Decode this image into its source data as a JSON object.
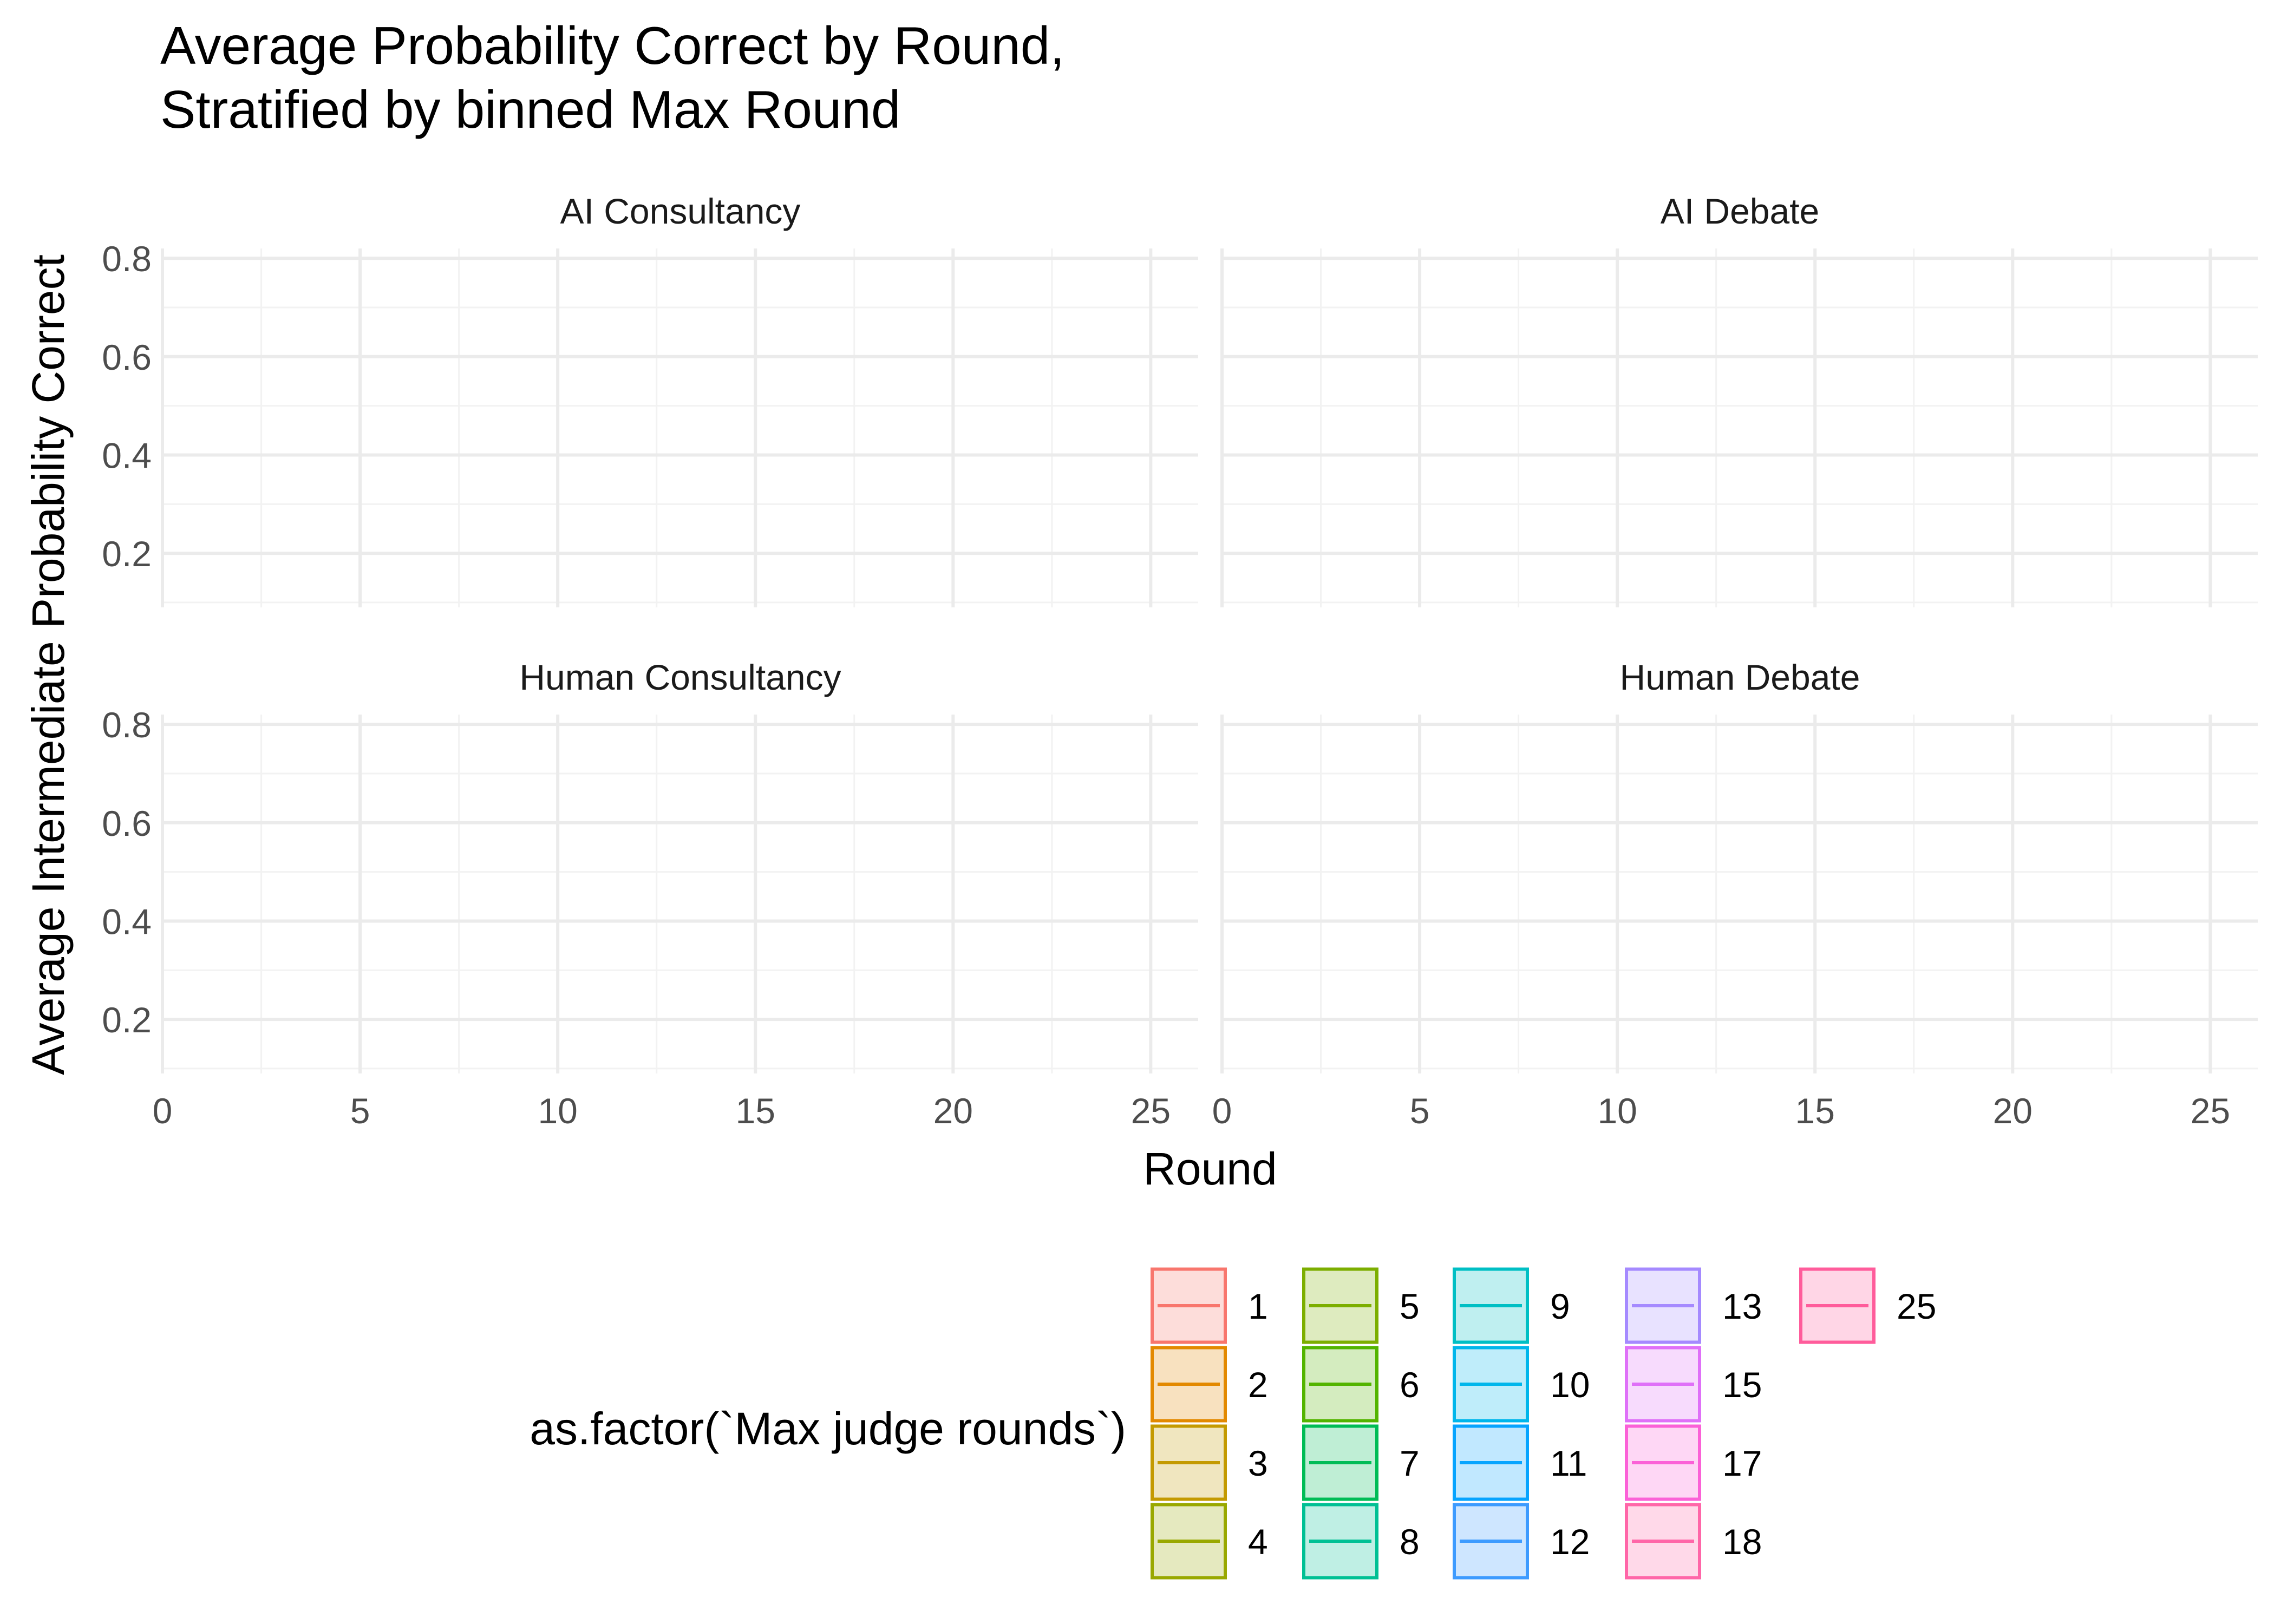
{
  "chart_data": {
    "type": "line",
    "title": "Average Probability Correct by Round,",
    "subtitle": "Stratified by binned Max Round",
    "xlabel": "Round",
    "ylabel": "Average Intermediate Probability Correct",
    "xlim": [
      0,
      26.2
    ],
    "ylim": [
      0.09,
      0.82
    ],
    "x_ticks": [
      0,
      5,
      10,
      15,
      20,
      25
    ],
    "x_tick_labels": [
      "0",
      "5",
      "10",
      "15",
      "20",
      "25"
    ],
    "y_ticks": [
      0.2,
      0.4,
      0.6,
      0.8
    ],
    "y_tick_labels": [
      "0.2",
      "0.4",
      "0.6",
      "0.8"
    ],
    "grid": true,
    "facets": [
      {
        "title": "AI Consultancy",
        "series": []
      },
      {
        "title": "AI Debate",
        "series": []
      },
      {
        "title": "Human Consultancy",
        "series": []
      },
      {
        "title": "Human Debate",
        "series": []
      }
    ],
    "legend": {
      "title": "as.factor(`Max judge rounds`)",
      "position": "bottom",
      "entries": [
        {
          "label": "1",
          "color": "#F8766D"
        },
        {
          "label": "2",
          "color": "#E38900"
        },
        {
          "label": "3",
          "color": "#C49A00"
        },
        {
          "label": "4",
          "color": "#99A800"
        },
        {
          "label": "5",
          "color": "#7CAE00"
        },
        {
          "label": "6",
          "color": "#53B400"
        },
        {
          "label": "7",
          "color": "#00BC56"
        },
        {
          "label": "8",
          "color": "#00C094"
        },
        {
          "label": "9",
          "color": "#00BFC4"
        },
        {
          "label": "10",
          "color": "#00B6EB"
        },
        {
          "label": "11",
          "color": "#06A4FF"
        },
        {
          "label": "12",
          "color": "#3D9BFF"
        },
        {
          "label": "13",
          "color": "#A58AFF"
        },
        {
          "label": "15",
          "color": "#DF70F8"
        },
        {
          "label": "17",
          "color": "#FB61D7"
        },
        {
          "label": "18",
          "color": "#FF66A8"
        },
        {
          "label": "25",
          "color": "#FF5C9B"
        }
      ]
    }
  }
}
